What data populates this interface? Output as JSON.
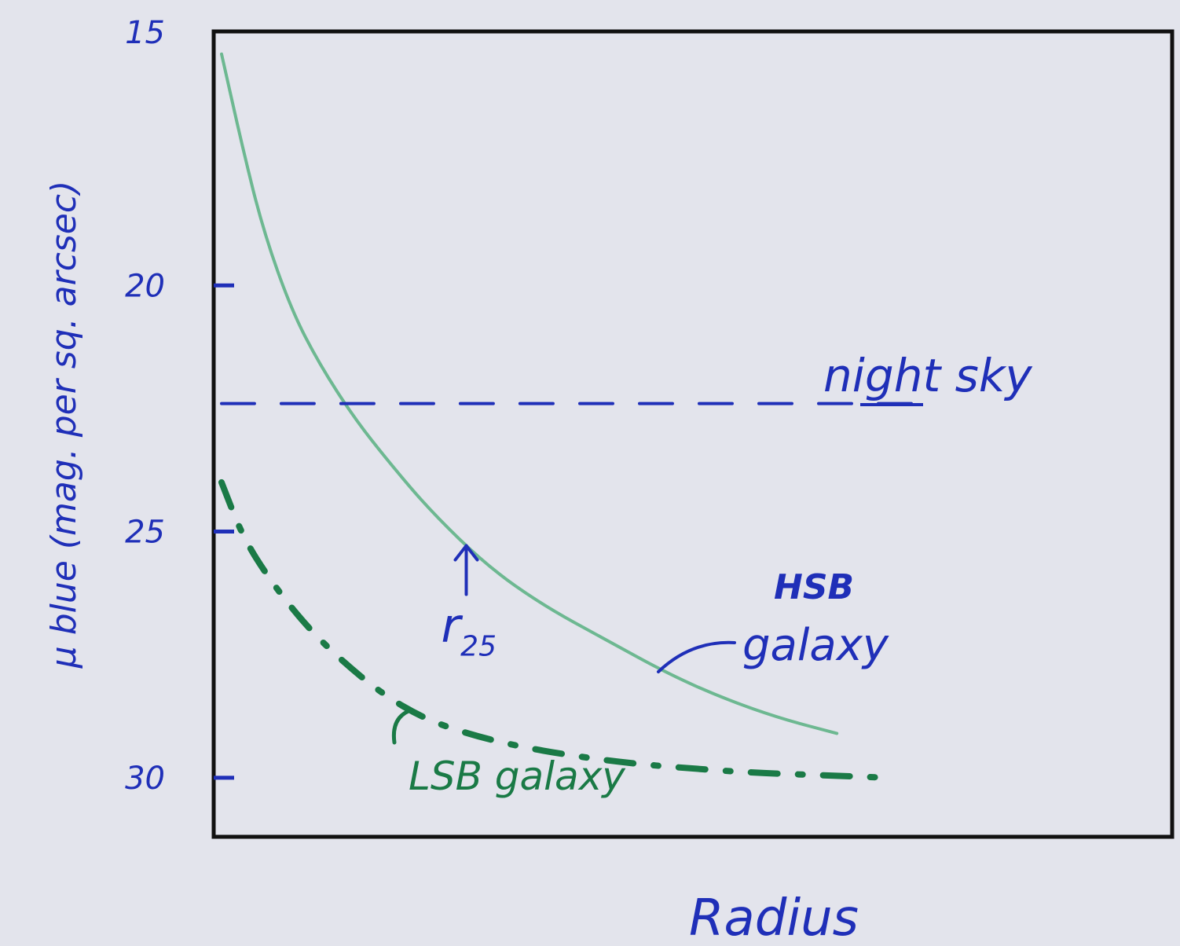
{
  "colors": {
    "background": "#e3e4ec",
    "ink_blue": "#1f2fb8",
    "hsb_green": "#6db891",
    "lsb_green": "#1a7a46",
    "axis": "#111111"
  },
  "chart_data": {
    "type": "line",
    "title": "",
    "xlabel": "Radius",
    "ylabel": "μ blue (mag. per sq. arcsec)",
    "ylim": [
      15,
      31.2
    ],
    "y_inverted": true,
    "xlim": [
      0,
      1
    ],
    "yticks": [
      15,
      20,
      25,
      30
    ],
    "ytick_labels": [
      "15",
      "20",
      "25",
      "30"
    ],
    "grid": false,
    "series": [
      {
        "name": "HSB galaxy",
        "label_lines": [
          "HSB",
          "galaxy"
        ],
        "style": "solid",
        "color": "#6db891",
        "x": [
          0.0,
          0.03,
          0.06,
          0.1,
          0.14,
          0.19,
          0.24,
          0.3,
          0.38,
          0.46,
          0.55,
          0.64,
          0.72,
          0.8,
          0.88
        ],
        "y": [
          15.3,
          17.2,
          18.9,
          20.5,
          21.6,
          22.7,
          23.6,
          24.6,
          25.7,
          26.5,
          27.2,
          27.9,
          28.4,
          28.8,
          29.1
        ]
      },
      {
        "name": "LSB galaxy",
        "style": "dash-dot",
        "color": "#1a7a46",
        "x": [
          0.0,
          0.03,
          0.07,
          0.12,
          0.17,
          0.23,
          0.29,
          0.35,
          0.42,
          0.5,
          0.58,
          0.66,
          0.76,
          0.86,
          0.95
        ],
        "y": [
          24.0,
          25.1,
          26.0,
          26.9,
          27.6,
          28.3,
          28.8,
          29.1,
          29.35,
          29.55,
          29.7,
          29.8,
          29.9,
          29.95,
          30.0
        ]
      },
      {
        "name": "night sky",
        "style": "dashed",
        "color": "#1f2fb8",
        "x": [
          0.0,
          1.0
        ],
        "y": [
          22.4,
          22.4
        ]
      }
    ],
    "annotations": [
      {
        "text": "r",
        "subscript": "25",
        "x": 0.35,
        "y": 25.0,
        "note": "arrow pointing to HSB curve"
      }
    ]
  }
}
